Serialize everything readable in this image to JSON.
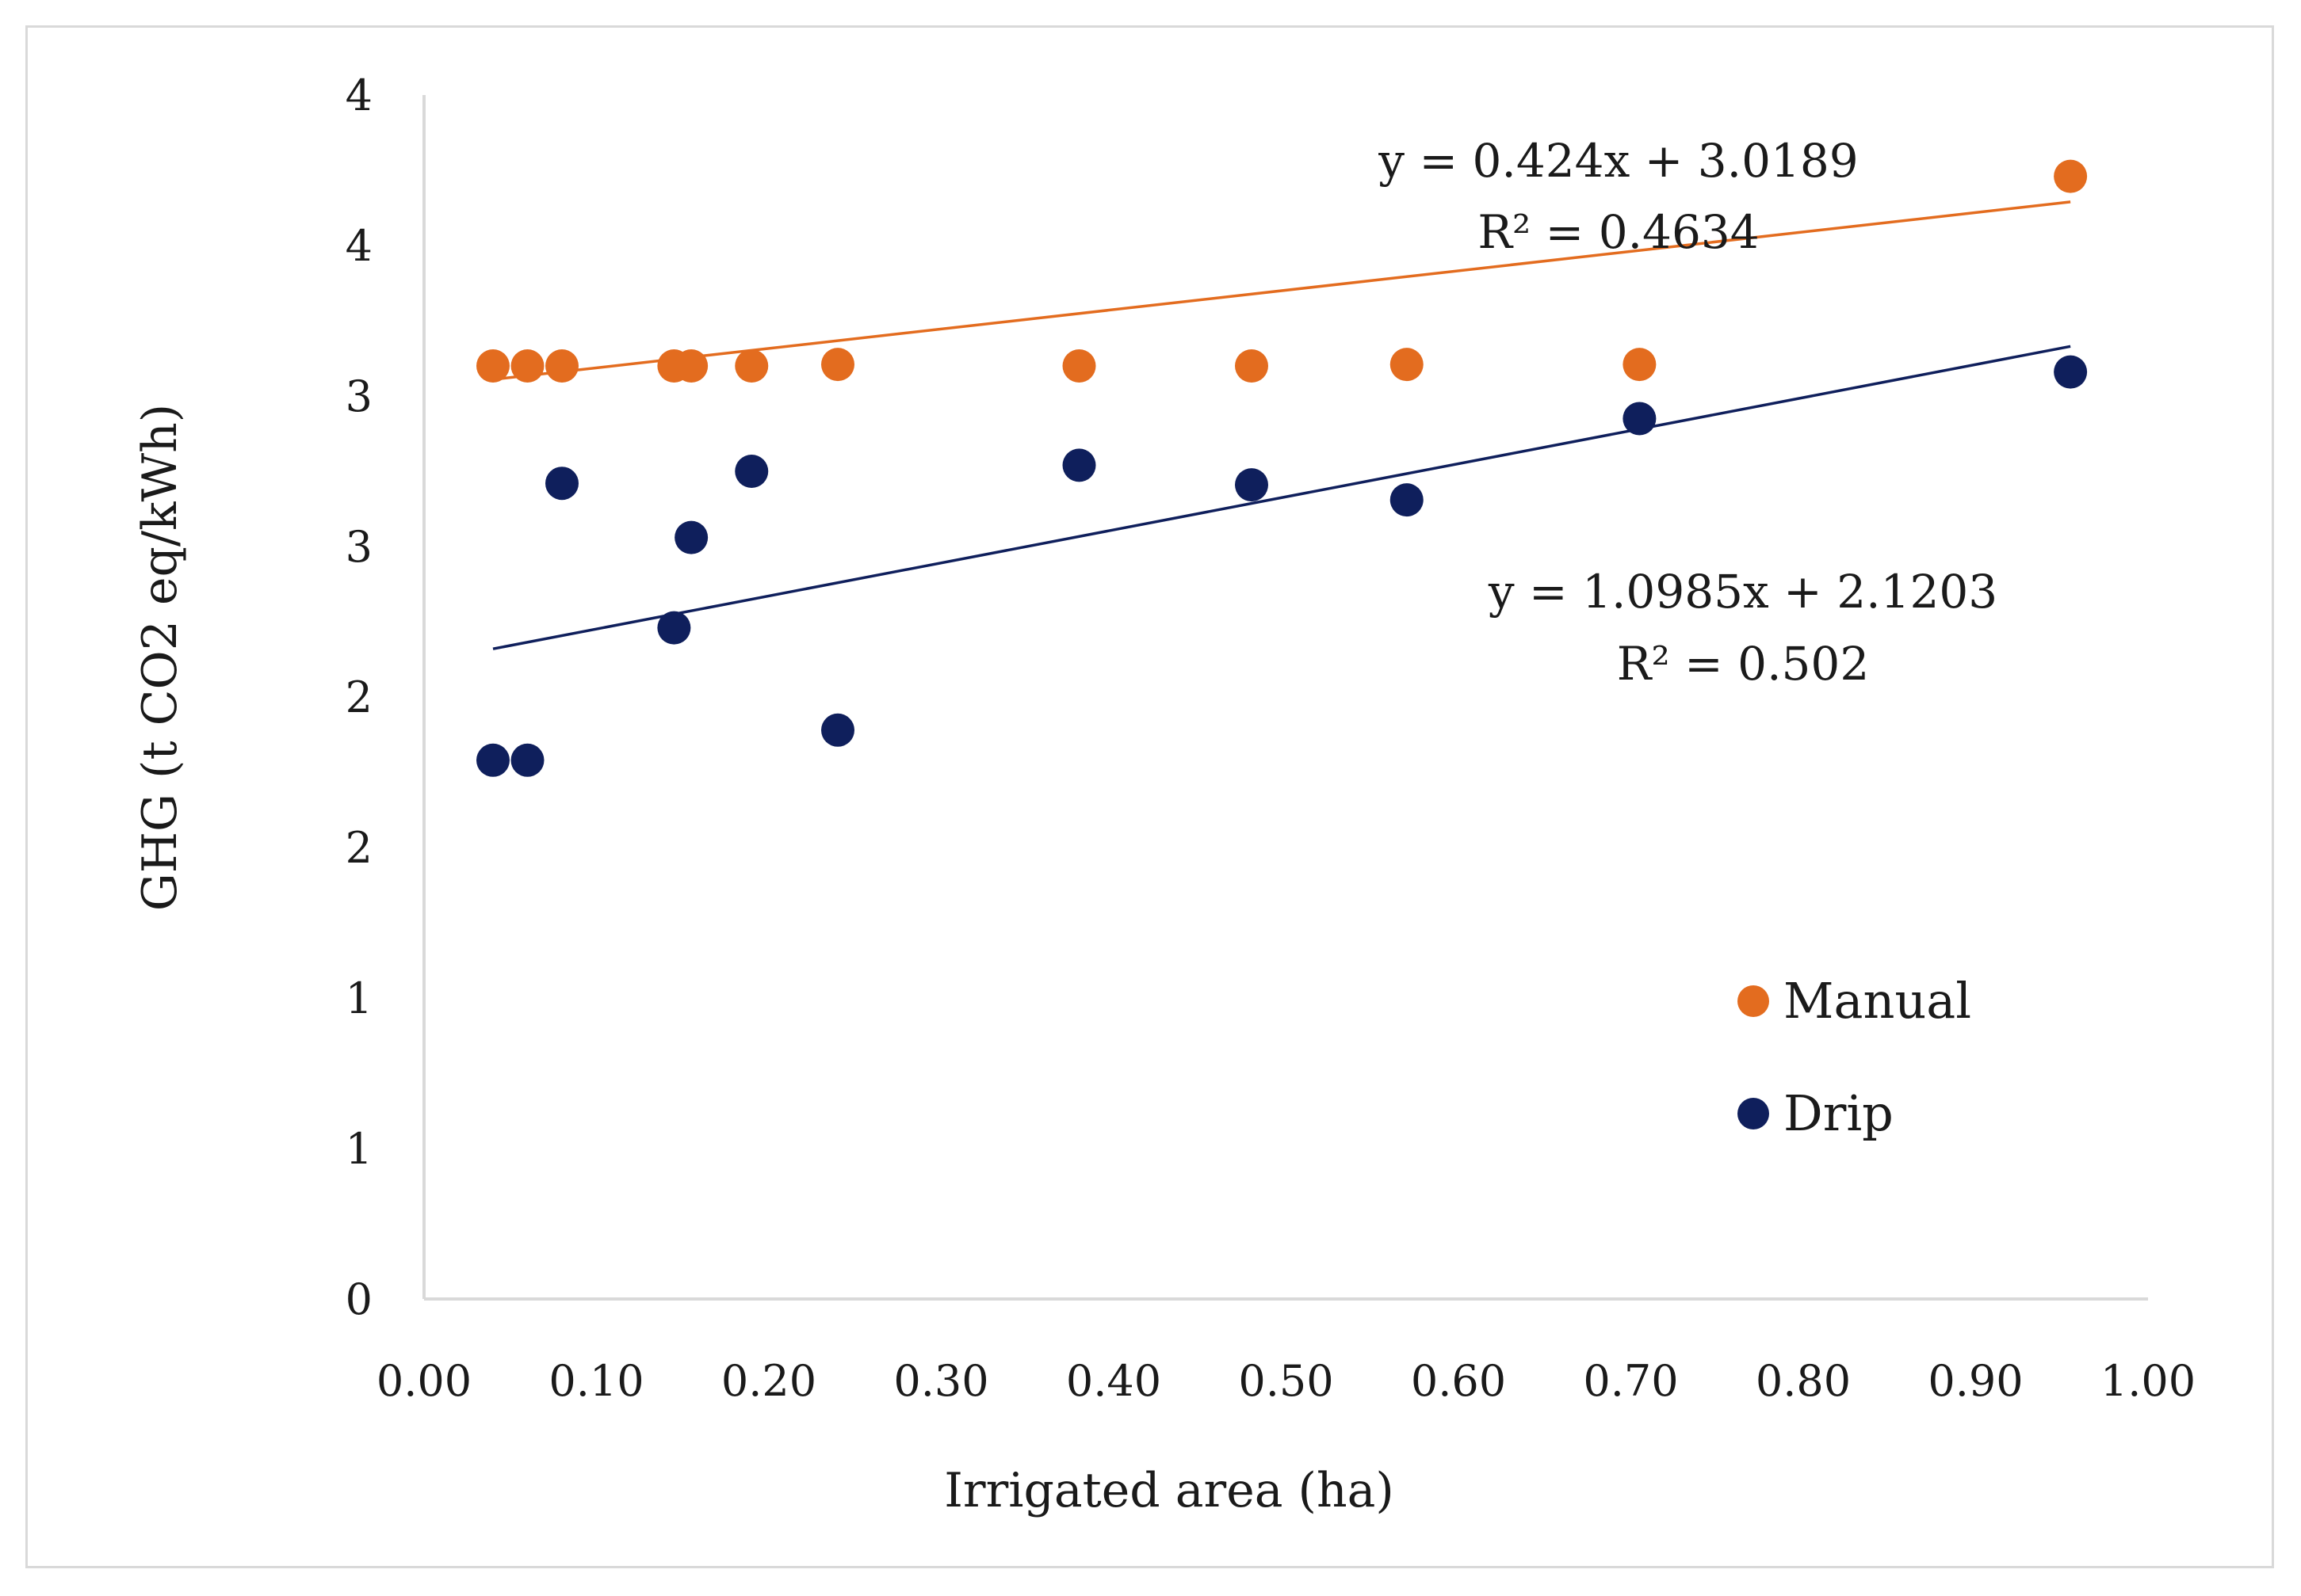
{
  "chart_data": {
    "type": "scatter",
    "title": "",
    "xlabel": "Irrigated area (ha)",
    "ylabel": "GHG (t CO2 eq/kWh)",
    "xlim": [
      0.0,
      1.0
    ],
    "ylim": [
      0,
      4
    ],
    "x_ticks": [
      0.0,
      0.1,
      0.2,
      0.3,
      0.4,
      0.5,
      0.6,
      0.7,
      0.8,
      0.9,
      1.0
    ],
    "x_tick_labels": [
      "0.00",
      "0.10",
      "0.20",
      "0.30",
      "0.40",
      "0.50",
      "0.60",
      "0.70",
      "0.80",
      "0.90",
      "1.00"
    ],
    "y_ticks": [
      0,
      0.5,
      1.0,
      1.5,
      2.0,
      2.5,
      3.0,
      3.5,
      4.0
    ],
    "y_tick_labels": [
      "0",
      "1",
      "1",
      "2",
      "2",
      "3",
      "3",
      "4",
      "4"
    ],
    "legend_position": "right",
    "series": [
      {
        "name": "Manual",
        "color": "#E36C1F",
        "x": [
          0.04,
          0.06,
          0.08,
          0.145,
          0.155,
          0.19,
          0.24,
          0.38,
          0.48,
          0.57,
          0.705,
          0.955
        ],
        "y": [
          3.1,
          3.1,
          3.1,
          3.1,
          3.1,
          3.1,
          3.105,
          3.1,
          3.1,
          3.105,
          3.105,
          3.73
        ],
        "trendline": {
          "slope": 0.424,
          "intercept": 3.0189,
          "x_range": [
            0.04,
            0.955
          ],
          "equation": "y = 0.424x + 3.0189",
          "r2_label": "R² = 0.4634"
        }
      },
      {
        "name": "Drip",
        "color": "#0F1F5C",
        "x": [
          0.04,
          0.06,
          0.08,
          0.145,
          0.155,
          0.19,
          0.24,
          0.38,
          0.48,
          0.57,
          0.705,
          0.955
        ],
        "y": [
          1.79,
          1.79,
          2.71,
          2.23,
          2.53,
          2.75,
          1.89,
          2.77,
          2.705,
          2.655,
          2.925,
          3.08
        ],
        "trendline": {
          "slope": 1.0985,
          "intercept": 2.1203,
          "x_range": [
            0.04,
            0.955
          ],
          "equation": "y = 1.0985x + 2.1203",
          "r2_label": "R² = 0.502"
        }
      }
    ]
  }
}
